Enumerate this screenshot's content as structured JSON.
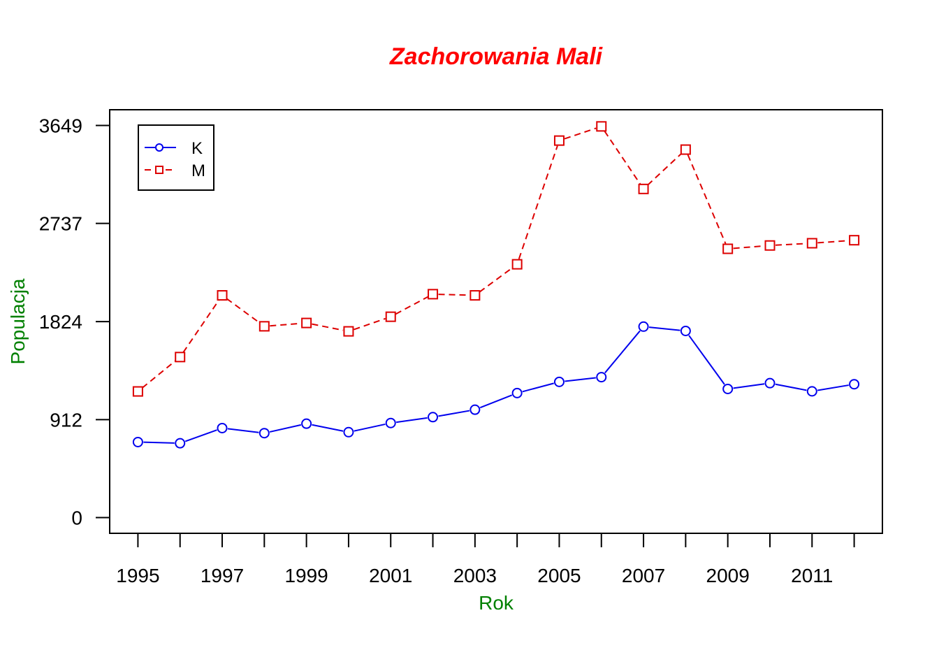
{
  "chart_data": {
    "type": "line",
    "title": "Zachorowania Mali",
    "xlabel": "Rok",
    "ylabel": "Populacja",
    "x": [
      1995,
      1996,
      1997,
      1998,
      1999,
      2000,
      2001,
      2002,
      2003,
      2004,
      2005,
      2006,
      2007,
      2008,
      2009,
      2010,
      2011,
      2012
    ],
    "x_tick_labels": [
      "1995",
      "1997",
      "1999",
      "2001",
      "2003",
      "2005",
      "2007",
      "2009",
      "2011"
    ],
    "y_tick_values": [
      0,
      912,
      1824,
      2737,
      3649
    ],
    "y_tick_labels": [
      "0",
      "912",
      "1824",
      "2737",
      "3649"
    ],
    "xlim": [
      1994.33,
      2012.67
    ],
    "ylim": [
      -146,
      3795
    ],
    "grid": false,
    "legend_position": "top-left",
    "series": [
      {
        "name": "K",
        "color": "#0000ee",
        "line_style": "solid",
        "marker": "circle",
        "values": [
          703,
          692,
          833,
          786,
          874,
          795,
          880,
          935,
          1004,
          1159,
          1263,
          1307,
          1777,
          1737,
          1197,
          1251,
          1175,
          1241
        ]
      },
      {
        "name": "M",
        "color": "#dd0000",
        "line_style": "dashed",
        "marker": "square",
        "values": [
          1174,
          1494,
          2068,
          1780,
          1811,
          1733,
          1869,
          2079,
          2068,
          2357,
          3508,
          3640,
          3058,
          3424,
          2501,
          2532,
          2553,
          2581
        ]
      }
    ],
    "title_color": "#ff0000",
    "label_color": "#008000"
  }
}
